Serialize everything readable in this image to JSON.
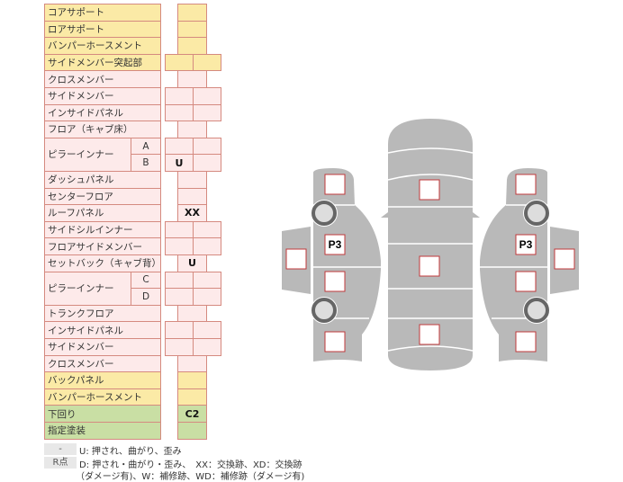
{
  "rows": [
    {
      "label": "コアサポート",
      "color": "yellow",
      "cells": 1,
      "values": [
        ""
      ]
    },
    {
      "label": "ロアサポート",
      "color": "yellow",
      "cells": 1,
      "values": [
        ""
      ]
    },
    {
      "label": "バンパーホースメント",
      "color": "yellow",
      "cells": 1,
      "values": [
        ""
      ]
    },
    {
      "label": "サイドメンバー突起部",
      "color": "yellow",
      "cells": 2,
      "values": [
        "",
        ""
      ]
    },
    {
      "label": "クロスメンバー",
      "color": "pink",
      "cells": 1,
      "values": [
        ""
      ]
    },
    {
      "label": "サイドメンバー",
      "color": "pink",
      "cells": 2,
      "values": [
        "",
        ""
      ]
    },
    {
      "label": "インサイドパネル",
      "color": "pink",
      "cells": 2,
      "values": [
        "",
        ""
      ]
    },
    {
      "label": "フロア（キャブ床）",
      "color": "pink",
      "cells": 1,
      "values": [
        ""
      ]
    },
    {
      "label": "ピラーインナー",
      "sub": "A",
      "color": "pink",
      "cells": 2,
      "values": [
        "",
        ""
      ]
    },
    {
      "label": "",
      "sub": "B",
      "color": "pink",
      "cells": 2,
      "values": [
        "U",
        ""
      ]
    },
    {
      "label": "ダッシュパネル",
      "color": "pink",
      "cells": 1,
      "values": [
        ""
      ]
    },
    {
      "label": "センターフロア",
      "color": "pink",
      "cells": 1,
      "values": [
        ""
      ]
    },
    {
      "label": "ルーフパネル",
      "color": "pink",
      "cells": 1,
      "values": [
        "XX"
      ]
    },
    {
      "label": "サイドシルインナー",
      "color": "pink",
      "cells": 2,
      "values": [
        "",
        ""
      ]
    },
    {
      "label": "フロアサイドメンバー",
      "color": "pink",
      "cells": 2,
      "values": [
        "",
        ""
      ]
    },
    {
      "label": "セットバック（キャブ背）",
      "color": "pink",
      "cells": 1,
      "values": [
        "U"
      ]
    },
    {
      "label": "ピラーインナー",
      "sub": "C",
      "color": "pink",
      "cells": 2,
      "values": [
        "",
        ""
      ]
    },
    {
      "label": "",
      "sub": "D",
      "color": "pink",
      "cells": 2,
      "values": [
        "",
        ""
      ]
    },
    {
      "label": "トランクフロア",
      "color": "pink",
      "cells": 1,
      "values": [
        ""
      ]
    },
    {
      "label": "インサイドパネル",
      "color": "pink",
      "cells": 2,
      "values": [
        "",
        ""
      ]
    },
    {
      "label": "サイドメンバー",
      "color": "pink",
      "cells": 2,
      "values": [
        "",
        ""
      ]
    },
    {
      "label": "クロスメンバー",
      "color": "pink",
      "cells": 1,
      "values": [
        ""
      ]
    },
    {
      "label": "バックパネル",
      "color": "yellow",
      "cells": 1,
      "values": [
        ""
      ]
    },
    {
      "label": "バンパーホースメント",
      "color": "yellow",
      "cells": 1,
      "values": [
        ""
      ]
    },
    {
      "label": "下回り",
      "color": "green",
      "cells": 1,
      "values": [
        "C2"
      ]
    },
    {
      "label": "指定塗装",
      "color": "green",
      "cells": 1,
      "values": [
        ""
      ]
    }
  ],
  "colors": {
    "pink": "#fdeaea",
    "yellow": "#fbeaa6",
    "green": "#c9dfa4",
    "border": "#d58a80",
    "car": "#b9b9b9"
  },
  "legend": {
    "key1": "-",
    "text1": "U: 押され、曲がり、歪み",
    "key2": "R点",
    "text2": "D: 押され・曲がり・歪み、　XX：交換跡、XD：交換跡",
    "text3": "（ダメージ有)、W：補修跡、WD：補修跡（ダメージ有)"
  },
  "diagram": {
    "left_p3": "P3",
    "right_p3": "P3"
  }
}
